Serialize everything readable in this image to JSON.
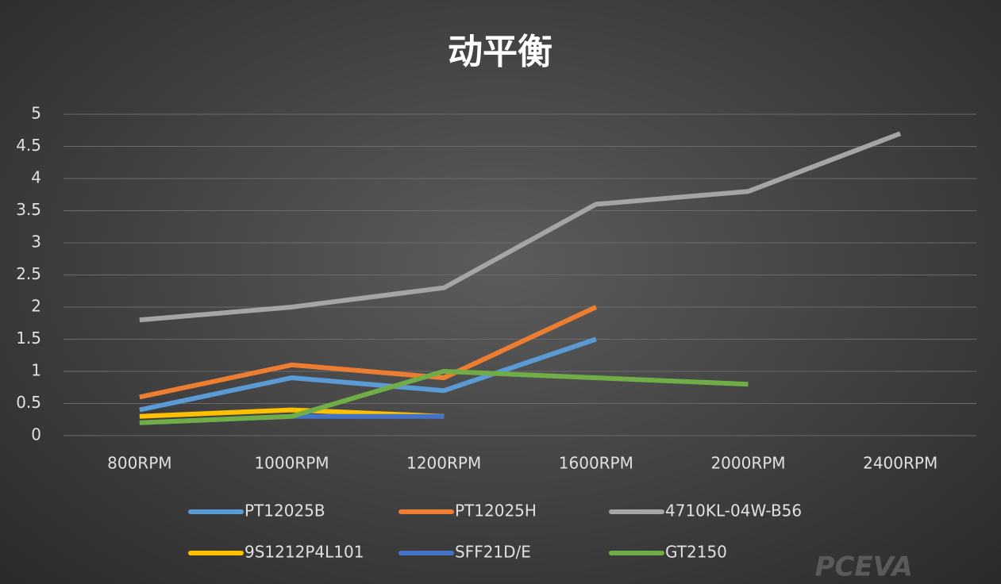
{
  "chart_data": {
    "type": "line",
    "title": "动平衡",
    "categories": [
      "800RPM",
      "1000RPM",
      "1200RPM",
      "1600RPM",
      "2000RPM",
      "2400RPM"
    ],
    "series": [
      {
        "name": "PT12025B",
        "color": "#5b9bd5",
        "values": [
          0.4,
          0.9,
          0.7,
          1.5,
          null,
          null
        ]
      },
      {
        "name": "PT12025H",
        "color": "#ed7d31",
        "values": [
          0.6,
          1.1,
          0.9,
          2.0,
          null,
          null
        ]
      },
      {
        "name": "4710KL-04W-B56",
        "color": "#a5a5a5",
        "values": [
          1.8,
          2.0,
          2.3,
          3.6,
          3.8,
          4.7
        ]
      },
      {
        "name": "9S1212P4L101",
        "color": "#ffc000",
        "values": [
          0.3,
          0.4,
          0.3,
          null,
          null,
          null
        ]
      },
      {
        "name": "SFF21D/E",
        "color": "#4472c4",
        "values": [
          0.2,
          0.3,
          0.3,
          null,
          null,
          null
        ]
      },
      {
        "name": "GT2150",
        "color": "#70ad47",
        "values": [
          0.2,
          0.3,
          1.0,
          0.9,
          0.8,
          null
        ]
      }
    ],
    "ylim": [
      0,
      5
    ],
    "yticks": [
      0,
      0.5,
      1,
      1.5,
      2,
      2.5,
      3,
      3.5,
      4,
      4.5,
      5
    ],
    "grid": true,
    "legend": "bottom",
    "watermark": "PCEVA"
  }
}
